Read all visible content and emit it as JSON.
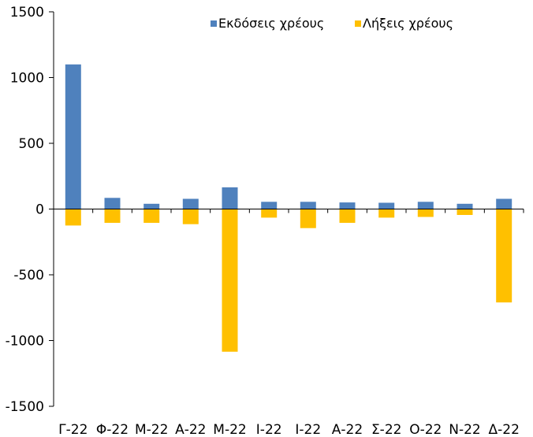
{
  "chart_data": {
    "type": "bar",
    "categories": [
      "Γ-22",
      "Φ-22",
      "Μ-22",
      "Α-22",
      "Μ-22",
      "Ι-22",
      "Ι-22",
      "Α-22",
      "Σ-22",
      "Ο-22",
      "Ν-22",
      "Δ-22"
    ],
    "series": [
      {
        "name": "Εκδόσεις χρέους",
        "color": "#4F81BD",
        "values": [
          1100,
          85,
          40,
          78,
          165,
          55,
          55,
          50,
          48,
          55,
          40,
          78
        ]
      },
      {
        "name": "Λήξεις χρέους",
        "color": "#FFC000",
        "values": [
          -125,
          -105,
          -105,
          -115,
          -1085,
          -65,
          -145,
          -105,
          -65,
          -60,
          -45,
          -710
        ]
      }
    ],
    "ylim": [
      -1500,
      1500
    ],
    "yticks": [
      1500,
      1000,
      500,
      0,
      -500,
      -1000,
      -1500
    ],
    "title": "",
    "xlabel": "",
    "ylabel": "",
    "grid": false,
    "legend_position": "top-right"
  }
}
